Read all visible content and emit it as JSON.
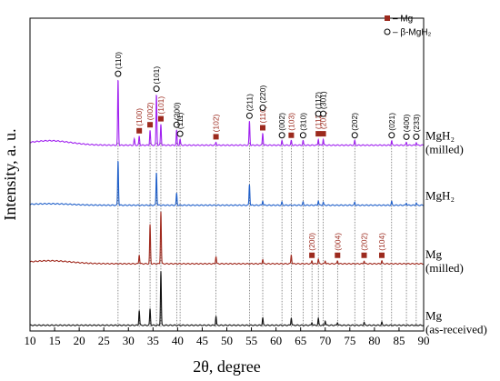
{
  "chart_data": {
    "type": "line",
    "xlabel": "2θ, degree",
    "ylabel": "Intensity, a. u.",
    "xlim": [
      10,
      90
    ],
    "xticks": [
      "10",
      "15",
      "20",
      "25",
      "30",
      "35",
      "40",
      "45",
      "50",
      "55",
      "60",
      "65",
      "70",
      "75",
      "80",
      "85",
      "90"
    ],
    "grid": false,
    "legend": {
      "position": "top-right",
      "entries": [
        {
          "marker": "square",
          "color": "#9c2a1e",
          "label": "– Mg"
        },
        {
          "marker": "circle",
          "color": "#000000",
          "label": "– β-MgH₂"
        }
      ]
    },
    "series": [
      {
        "name": "MgH₂ (milled)",
        "label_lines": [
          "MgH₂",
          "(milled)"
        ],
        "color": "#a020f0",
        "offset": 6.1,
        "baseline_slope": 0.15,
        "peaks": [
          {
            "x": 27.9,
            "h": 2.2
          },
          {
            "x": 31.2,
            "h": 0.2
          },
          {
            "x": 32.2,
            "h": 0.3
          },
          {
            "x": 34.4,
            "h": 0.5
          },
          {
            "x": 35.7,
            "h": 1.7
          },
          {
            "x": 36.6,
            "h": 0.7
          },
          {
            "x": 39.8,
            "h": 0.5
          },
          {
            "x": 40.5,
            "h": 0.2
          },
          {
            "x": 47.8,
            "h": 0.1
          },
          {
            "x": 54.6,
            "h": 0.8
          },
          {
            "x": 57.3,
            "h": 0.4
          },
          {
            "x": 61.2,
            "h": 0.15
          },
          {
            "x": 63.1,
            "h": 0.15
          },
          {
            "x": 65.5,
            "h": 0.15
          },
          {
            "x": 68.6,
            "h": 0.2
          },
          {
            "x": 69.6,
            "h": 0.2
          },
          {
            "x": 76.0,
            "h": 0.15
          },
          {
            "x": 83.5,
            "h": 0.15
          },
          {
            "x": 86.5,
            "h": 0.1
          },
          {
            "x": 88.5,
            "h": 0.1
          }
        ]
      },
      {
        "name": "MgH₂",
        "label_lines": [
          "MgH₂"
        ],
        "color": "#1f5fc9",
        "offset": 4.1,
        "baseline_slope": 0.05,
        "peaks": [
          {
            "x": 27.9,
            "h": 1.5
          },
          {
            "x": 35.7,
            "h": 1.1
          },
          {
            "x": 39.8,
            "h": 0.4
          },
          {
            "x": 54.6,
            "h": 0.7
          },
          {
            "x": 57.3,
            "h": 0.15
          },
          {
            "x": 61.2,
            "h": 0.1
          },
          {
            "x": 65.5,
            "h": 0.1
          },
          {
            "x": 68.6,
            "h": 0.15
          },
          {
            "x": 69.6,
            "h": 0.1
          },
          {
            "x": 76.0,
            "h": 0.1
          },
          {
            "x": 83.5,
            "h": 0.12
          },
          {
            "x": 86.5,
            "h": 0.08
          },
          {
            "x": 88.5,
            "h": 0.08
          }
        ]
      },
      {
        "name": "Mg (milled)",
        "label_lines": [
          "Mg",
          "(milled)"
        ],
        "color": "#a0291d",
        "offset": 2.15,
        "baseline_slope": 0.1,
        "peaks": [
          {
            "x": 32.2,
            "h": 0.3
          },
          {
            "x": 34.4,
            "h": 1.3
          },
          {
            "x": 36.6,
            "h": 1.75
          },
          {
            "x": 47.8,
            "h": 0.25
          },
          {
            "x": 57.3,
            "h": 0.15
          },
          {
            "x": 63.1,
            "h": 0.3
          },
          {
            "x": 67.3,
            "h": 0.1
          },
          {
            "x": 68.6,
            "h": 0.15
          },
          {
            "x": 70.0,
            "h": 0.1
          },
          {
            "x": 72.5,
            "h": 0.1
          },
          {
            "x": 77.9,
            "h": 0.1
          },
          {
            "x": 81.5,
            "h": 0.1
          }
        ]
      },
      {
        "name": "Mg (as-received)",
        "label_lines": [
          "Mg",
          "(as-received)"
        ],
        "color": "#111111",
        "offset": 0.1,
        "baseline_slope": 0.0,
        "peaks": [
          {
            "x": 32.2,
            "h": 0.5
          },
          {
            "x": 34.4,
            "h": 0.55
          },
          {
            "x": 36.6,
            "h": 1.8
          },
          {
            "x": 47.8,
            "h": 0.3
          },
          {
            "x": 57.3,
            "h": 0.25
          },
          {
            "x": 63.1,
            "h": 0.25
          },
          {
            "x": 67.3,
            "h": 0.1
          },
          {
            "x": 68.6,
            "h": 0.22
          },
          {
            "x": 70.0,
            "h": 0.15
          },
          {
            "x": 72.5,
            "h": 0.1
          },
          {
            "x": 77.9,
            "h": 0.1
          },
          {
            "x": 81.5,
            "h": 0.1
          }
        ]
      }
    ],
    "reference_lines_x": [
      27.9,
      32.2,
      34.4,
      35.7,
      36.6,
      39.8,
      40.5,
      47.8,
      54.6,
      57.3,
      61.2,
      63.1,
      65.5,
      68.6,
      69.6,
      76.0,
      83.5,
      86.5,
      88.5
    ],
    "reference_lines_lower_x": [
      67.3,
      72.5,
      77.9,
      81.5
    ],
    "annotations_upper": [
      {
        "x": 27.9,
        "marker": "circle",
        "label": "(110)",
        "color": "#000000"
      },
      {
        "x": 32.2,
        "marker": "square",
        "label": "(100)",
        "color": "#9c2a1e"
      },
      {
        "x": 34.4,
        "marker": "square",
        "label": "(002)",
        "color": "#9c2a1e"
      },
      {
        "x": 35.7,
        "marker": "circle",
        "label": "(101)",
        "color": "#000000"
      },
      {
        "x": 36.6,
        "marker": "square",
        "label": "(101)",
        "color": "#9c2a1e"
      },
      {
        "x": 39.8,
        "marker": "circle",
        "label": "(200)",
        "color": "#000000"
      },
      {
        "x": 40.5,
        "marker": "circle",
        "label": "(111)",
        "color": "#000000"
      },
      {
        "x": 47.8,
        "marker": "square",
        "label": "(102)",
        "color": "#9c2a1e"
      },
      {
        "x": 54.6,
        "marker": "circle",
        "label": "(211)",
        "color": "#000000"
      },
      {
        "x": 57.3,
        "marker": "square",
        "label": "(110)",
        "color": "#9c2a1e"
      },
      {
        "x": 57.3,
        "marker": "circle",
        "label": "(220)",
        "color": "#000000"
      },
      {
        "x": 61.2,
        "marker": "circle",
        "label": "(002)",
        "color": "#000000"
      },
      {
        "x": 63.1,
        "marker": "square",
        "label": "(103)",
        "color": "#9c2a1e"
      },
      {
        "x": 65.5,
        "marker": "circle",
        "label": "(310)",
        "color": "#000000"
      },
      {
        "x": 68.6,
        "marker": "square",
        "label": "(112)",
        "color": "#9c2a1e"
      },
      {
        "x": 68.6,
        "marker": "circle",
        "label": "(112)",
        "color": "#000000"
      },
      {
        "x": 69.6,
        "marker": "square",
        "label": "(201)",
        "color": "#9c2a1e"
      },
      {
        "x": 69.6,
        "marker": "circle",
        "label": "(301)",
        "color": "#000000"
      },
      {
        "x": 76.0,
        "marker": "circle",
        "label": "(202)",
        "color": "#000000"
      },
      {
        "x": 83.5,
        "marker": "circle",
        "label": "(021)",
        "color": "#000000"
      },
      {
        "x": 86.5,
        "marker": "circle",
        "label": "(400)",
        "color": "#000000"
      },
      {
        "x": 88.5,
        "marker": "circle",
        "label": "(233)",
        "color": "#000000"
      }
    ],
    "annotations_lower": [
      {
        "x": 67.3,
        "marker": "square",
        "label": "(200)",
        "color": "#9c2a1e"
      },
      {
        "x": 72.5,
        "marker": "square",
        "label": "(004)",
        "color": "#9c2a1e"
      },
      {
        "x": 77.9,
        "marker": "square",
        "label": "(202)",
        "color": "#9c2a1e"
      },
      {
        "x": 81.5,
        "marker": "square",
        "label": "(104)",
        "color": "#9c2a1e"
      }
    ]
  }
}
